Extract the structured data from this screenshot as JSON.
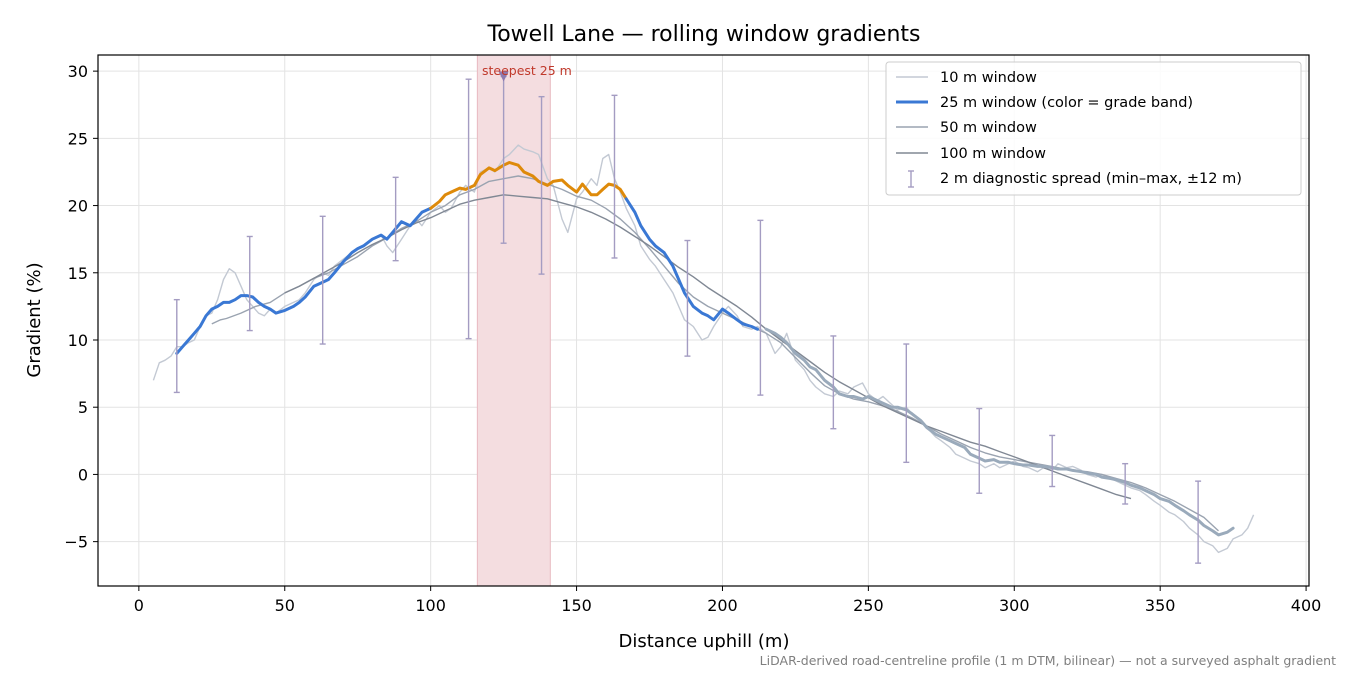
{
  "chart_data": {
    "type": "line",
    "title": "Towell Lane — rolling window gradients",
    "xlabel": "Distance uphill (m)",
    "ylabel": "Gradient (%)",
    "xlim": [
      -14,
      401
    ],
    "ylim": [
      -8.3,
      31.2
    ],
    "xticks": [
      0,
      50,
      100,
      150,
      200,
      250,
      300,
      350,
      400
    ],
    "xtick_labels": [
      "0",
      "50",
      "100",
      "150",
      "200",
      "250",
      "300",
      "350",
      "400"
    ],
    "yticks": [
      -5,
      0,
      5,
      10,
      15,
      20,
      25,
      30
    ],
    "ytick_labels": [
      "−5",
      "0",
      "5",
      "10",
      "15",
      "20",
      "25",
      "30"
    ],
    "grid": true,
    "legend_position": "top-right",
    "colors": {
      "w10": "#c3c9d3",
      "w25_blue": "#3a78d4",
      "w25_orange": "#de8a0a",
      "w25_grey": "#9aaabb",
      "w50": "#9aa3b0",
      "w100": "#808894",
      "errorbar": "#a49cc2",
      "steep_band": "#f4dde0",
      "steep_marker": "#8c7ab0",
      "annotation": "#c0392b"
    },
    "series": [
      {
        "name": "10 m window",
        "x": [
          5,
          7,
          9,
          11,
          13,
          15,
          17,
          19,
          21,
          23,
          25,
          27,
          29,
          31,
          33,
          35,
          37,
          39,
          41,
          43,
          45,
          47,
          50,
          53,
          55,
          57,
          60,
          63,
          65,
          67,
          70,
          73,
          75,
          77,
          80,
          83,
          85,
          87,
          90,
          93,
          95,
          97,
          100,
          103,
          105,
          107,
          110,
          112,
          115,
          117,
          120,
          122,
          125,
          127,
          130,
          132,
          135,
          137,
          140,
          142,
          145,
          147,
          150,
          152,
          155,
          157,
          159,
          161,
          163,
          165,
          167,
          170,
          172,
          175,
          177,
          180,
          183,
          185,
          187,
          190,
          193,
          195,
          197,
          200,
          202,
          205,
          207,
          210,
          212,
          215,
          218,
          220,
          222,
          225,
          228,
          230,
          232,
          235,
          238,
          240,
          243,
          245,
          248,
          250,
          253,
          255,
          258,
          260,
          263,
          265,
          268,
          270,
          273,
          275,
          278,
          280,
          283,
          285,
          288,
          290,
          293,
          295,
          298,
          300,
          303,
          305,
          308,
          310,
          313,
          315,
          318,
          320,
          323,
          325,
          328,
          330,
          333,
          335,
          338,
          340,
          343,
          345,
          348,
          350,
          353,
          355,
          358,
          360,
          363,
          365,
          368,
          370,
          373,
          375,
          378,
          380,
          382
        ],
        "y": [
          7.0,
          8.3,
          8.5,
          8.8,
          9.5,
          9.5,
          9.8,
          10.0,
          11.0,
          11.8,
          12.0,
          13.0,
          14.5,
          15.3,
          15.0,
          14.0,
          13.0,
          12.5,
          12.0,
          11.8,
          12.3,
          12.0,
          12.5,
          12.8,
          13.0,
          13.5,
          14.5,
          15.0,
          14.8,
          15.5,
          16.0,
          16.5,
          16.8,
          17.0,
          17.5,
          17.8,
          17.0,
          16.5,
          17.5,
          18.5,
          19.0,
          18.5,
          19.5,
          20.0,
          19.5,
          19.8,
          21.0,
          21.5,
          21.0,
          22.5,
          22.8,
          22.5,
          23.5,
          23.8,
          24.5,
          24.2,
          24.0,
          23.8,
          22.0,
          21.5,
          19.0,
          18.0,
          20.5,
          21.0,
          22.0,
          21.5,
          23.5,
          23.8,
          22.0,
          21.0,
          19.8,
          18.5,
          17.0,
          16.0,
          15.5,
          14.5,
          13.5,
          12.5,
          11.5,
          11.0,
          10.0,
          10.2,
          11.0,
          12.0,
          12.5,
          11.8,
          11.0,
          10.8,
          11.0,
          10.5,
          9.0,
          9.5,
          10.5,
          8.5,
          7.8,
          7.0,
          6.5,
          6.0,
          5.8,
          6.2,
          6.0,
          6.5,
          6.8,
          6.0,
          5.5,
          5.8,
          5.2,
          4.8,
          5.0,
          4.5,
          4.0,
          3.5,
          2.8,
          2.5,
          2.0,
          1.5,
          1.2,
          1.0,
          0.8,
          0.5,
          0.8,
          0.5,
          0.8,
          1.0,
          0.6,
          0.5,
          0.2,
          0.5,
          0.3,
          0.8,
          0.5,
          0.6,
          0.3,
          0.0,
          -0.2,
          0.0,
          -0.3,
          -0.5,
          -0.8,
          -1.0,
          -1.2,
          -1.5,
          -2.0,
          -2.3,
          -2.8,
          -3.0,
          -3.5,
          -4.0,
          -4.5,
          -5.0,
          -5.3,
          -5.8,
          -5.5,
          -4.8,
          -4.5,
          -4.0,
          -3.0
        ]
      },
      {
        "name": "25 m window (color = grade band)",
        "x": [
          13,
          15,
          17,
          19,
          21,
          23,
          25,
          27,
          29,
          31,
          33,
          35,
          37,
          39,
          41,
          43,
          45,
          47,
          50,
          53,
          55,
          57,
          60,
          63,
          65,
          67,
          70,
          73,
          75,
          77,
          80,
          83,
          85,
          87,
          90,
          93,
          95,
          97,
          100,
          103,
          105,
          107,
          110,
          112,
          115,
          117,
          120,
          122,
          125,
          127,
          130,
          132,
          135,
          137,
          140,
          142,
          145,
          147,
          150,
          152,
          155,
          157,
          159,
          161,
          163,
          165,
          167,
          170,
          172,
          175,
          177,
          180,
          183,
          185,
          187,
          190,
          193,
          195,
          197,
          200,
          202,
          205,
          207,
          210,
          212,
          215,
          218,
          220,
          222,
          225,
          228,
          230,
          232,
          235,
          238,
          240,
          243,
          245,
          248,
          250,
          253,
          255,
          258,
          260,
          263,
          265,
          268,
          270,
          273,
          275,
          278,
          280,
          283,
          285,
          288,
          290,
          293,
          295,
          298,
          300,
          303,
          305,
          308,
          310,
          313,
          315,
          318,
          320,
          323,
          325,
          328,
          330,
          333,
          335,
          338,
          340,
          343,
          345,
          348,
          350,
          353,
          355,
          358,
          360,
          363,
          365,
          368,
          370,
          373,
          375
        ],
        "y": [
          9.0,
          9.5,
          10.0,
          10.5,
          11.0,
          11.8,
          12.3,
          12.5,
          12.8,
          12.8,
          13.0,
          13.3,
          13.3,
          13.2,
          12.8,
          12.5,
          12.3,
          12.0,
          12.2,
          12.5,
          12.8,
          13.2,
          14.0,
          14.3,
          14.5,
          15.0,
          15.8,
          16.5,
          16.8,
          17.0,
          17.5,
          17.8,
          17.5,
          18.0,
          18.8,
          18.5,
          19.0,
          19.5,
          19.8,
          20.3,
          20.8,
          21.0,
          21.3,
          21.2,
          21.5,
          22.3,
          22.8,
          22.6,
          23.0,
          23.2,
          23.0,
          22.5,
          22.2,
          21.8,
          21.5,
          21.8,
          21.9,
          21.5,
          21.0,
          21.6,
          20.8,
          20.8,
          21.2,
          21.6,
          21.5,
          21.2,
          20.5,
          19.5,
          18.5,
          17.5,
          17.0,
          16.5,
          15.5,
          14.5,
          13.5,
          12.5,
          12.0,
          11.8,
          11.5,
          12.3,
          12.0,
          11.5,
          11.2,
          11.0,
          10.8,
          10.8,
          10.5,
          10.2,
          9.8,
          9.0,
          8.5,
          8.0,
          7.8,
          7.0,
          6.5,
          6.0,
          5.8,
          5.8,
          5.6,
          5.8,
          5.5,
          5.3,
          5.0,
          5.0,
          4.8,
          4.5,
          4.0,
          3.5,
          3.0,
          2.8,
          2.5,
          2.3,
          2.0,
          1.5,
          1.2,
          1.0,
          1.1,
          0.9,
          0.9,
          0.8,
          0.7,
          0.7,
          0.6,
          0.6,
          0.5,
          0.4,
          0.4,
          0.3,
          0.2,
          0.1,
          0.0,
          -0.2,
          -0.3,
          -0.4,
          -0.6,
          -0.8,
          -1.0,
          -1.2,
          -1.5,
          -1.8,
          -2.0,
          -2.3,
          -2.7,
          -3.0,
          -3.4,
          -3.8,
          -4.2,
          -4.5,
          -4.3,
          -4.0
        ]
      },
      {
        "name": "50 m window",
        "x": [
          25,
          28,
          30,
          35,
          40,
          45,
          50,
          55,
          60,
          65,
          70,
          75,
          80,
          85,
          90,
          95,
          100,
          105,
          110,
          115,
          120,
          125,
          130,
          135,
          140,
          145,
          150,
          155,
          160,
          165,
          170,
          175,
          180,
          185,
          190,
          195,
          200,
          205,
          210,
          215,
          220,
          225,
          230,
          235,
          240,
          245,
          250,
          255,
          260,
          265,
          270,
          275,
          280,
          285,
          290,
          295,
          300,
          305,
          310,
          315,
          320,
          325,
          330,
          335,
          340,
          345,
          350,
          355,
          360,
          365,
          370
        ],
        "y": [
          11.2,
          11.5,
          11.6,
          12.0,
          12.5,
          12.8,
          13.5,
          14.0,
          14.6,
          15.0,
          15.6,
          16.2,
          17.0,
          17.6,
          18.3,
          18.8,
          19.5,
          20.0,
          20.8,
          21.2,
          21.8,
          22.0,
          22.2,
          22.0,
          21.6,
          21.2,
          20.7,
          20.4,
          19.8,
          19.0,
          18.0,
          16.8,
          15.5,
          14.2,
          13.2,
          12.5,
          12.0,
          11.5,
          11.0,
          10.5,
          9.8,
          8.7,
          7.6,
          6.6,
          6.0,
          5.6,
          5.4,
          5.1,
          4.7,
          4.2,
          3.6,
          3.0,
          2.5,
          2.0,
          1.6,
          1.3,
          1.1,
          0.9,
          0.7,
          0.5,
          0.3,
          0.2,
          0.0,
          -0.3,
          -0.6,
          -1.0,
          -1.5,
          -2.0,
          -2.6,
          -3.2,
          -4.2
        ]
      },
      {
        "name": "100 m window",
        "x": [
          50,
          55,
          60,
          65,
          70,
          75,
          80,
          85,
          90,
          95,
          100,
          105,
          110,
          115,
          120,
          125,
          130,
          135,
          140,
          145,
          150,
          155,
          160,
          165,
          170,
          175,
          180,
          185,
          190,
          195,
          200,
          205,
          210,
          215,
          220,
          225,
          230,
          235,
          240,
          245,
          250,
          255,
          260,
          265,
          270,
          275,
          280,
          285,
          290,
          295,
          300,
          305,
          310,
          315,
          320,
          325,
          330,
          335,
          340
        ],
        "y": [
          13.5,
          14.0,
          14.6,
          15.2,
          15.8,
          16.5,
          17.1,
          17.6,
          18.2,
          18.7,
          19.1,
          19.6,
          20.1,
          20.4,
          20.6,
          20.8,
          20.7,
          20.6,
          20.5,
          20.2,
          19.9,
          19.5,
          19.0,
          18.4,
          17.7,
          17.0,
          16.2,
          15.4,
          14.7,
          13.9,
          13.2,
          12.5,
          11.7,
          10.8,
          10.0,
          9.2,
          8.4,
          7.6,
          6.9,
          6.3,
          5.7,
          5.1,
          4.6,
          4.1,
          3.6,
          3.2,
          2.8,
          2.4,
          2.1,
          1.7,
          1.3,
          0.9,
          0.5,
          0.1,
          -0.3,
          -0.7,
          -1.1,
          -1.5,
          -1.8
        ]
      }
    ],
    "grade_band_segments": [
      {
        "color": "w25_blue",
        "x_from": 13,
        "x_to": 100
      },
      {
        "color": "w25_orange",
        "x_from": 100,
        "x_to": 167
      },
      {
        "color": "w25_blue",
        "x_from": 167,
        "x_to": 214
      },
      {
        "color": "w25_grey",
        "x_from": 214,
        "x_to": 375
      }
    ],
    "errorbars": {
      "name": "2 m diagnostic spread (min–max, ±12 m)",
      "points": [
        {
          "x": 13,
          "low": 6.1,
          "high": 13.0
        },
        {
          "x": 38,
          "low": 10.7,
          "high": 17.7
        },
        {
          "x": 63,
          "low": 9.7,
          "high": 19.2
        },
        {
          "x": 88,
          "low": 15.9,
          "high": 22.1
        },
        {
          "x": 113,
          "low": 10.1,
          "high": 29.4
        },
        {
          "x": 125,
          "low": 17.2,
          "high": 29.6
        },
        {
          "x": 138,
          "low": 14.9,
          "high": 28.1
        },
        {
          "x": 163,
          "low": 16.1,
          "high": 28.2
        },
        {
          "x": 188,
          "low": 8.8,
          "high": 17.4
        },
        {
          "x": 213,
          "low": 5.9,
          "high": 18.9
        },
        {
          "x": 238,
          "low": 3.4,
          "high": 10.3
        },
        {
          "x": 263,
          "low": 0.9,
          "high": 9.7
        },
        {
          "x": 288,
          "low": -1.4,
          "high": 4.9
        },
        {
          "x": 313,
          "low": -0.9,
          "high": 2.9
        },
        {
          "x": 338,
          "low": -2.2,
          "high": 0.8
        },
        {
          "x": 363,
          "low": -6.6,
          "high": -0.5
        }
      ]
    },
    "steepest": {
      "label": "steepest 25 m",
      "x_from": 116,
      "x_to": 141,
      "marker_x": 125,
      "marker_y": 29.6
    },
    "footnote": "LiDAR-derived road-centreline profile (1 m DTM, bilinear) — not a surveyed asphalt gradient"
  }
}
